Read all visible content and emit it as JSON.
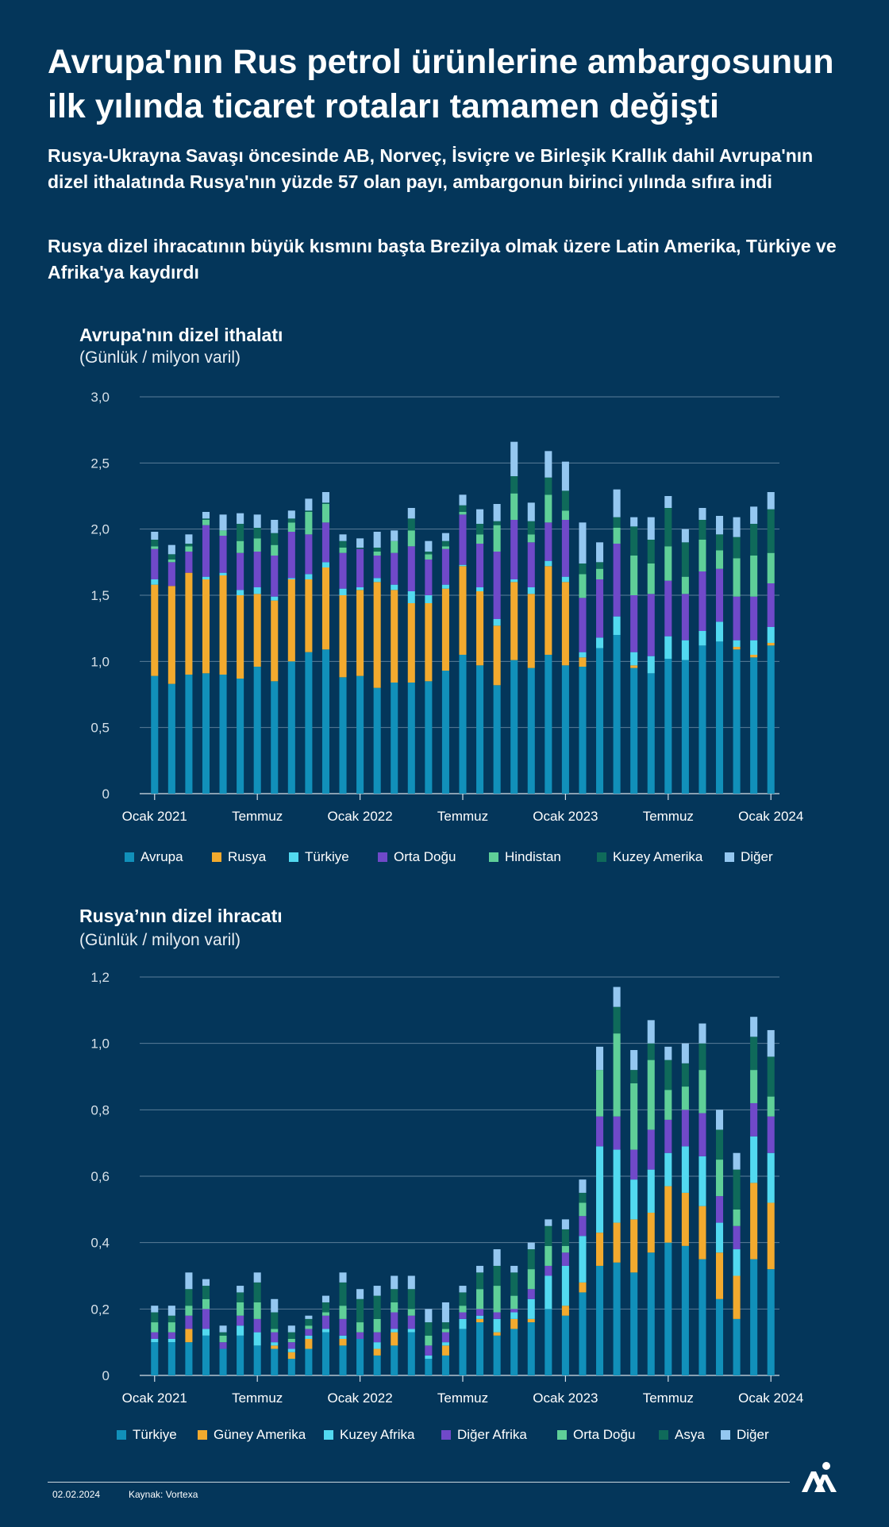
{
  "header": {
    "title": "Avrupa'nın Rus petrol ürünlerine ambargosunun ilk yılında ticaret rotaları tamamen değişti",
    "subtitle_1": "Rusya-Ukrayna Savaşı öncesinde AB, Norveç, İsviçre ve Birleşik Krallık dahil Avrupa'nın dizel ithalatında Rusya'nın yüzde 57 olan payı, ambargonun birinci yılında sıfıra indi",
    "subtitle_2": "Rusya dizel ihracatının büyük kısmını başta Brezilya olmak üzere Latin Amerika, Türkiye ve Afrika'ya kaydırdı"
  },
  "footer": {
    "date": "02.02.2024",
    "source": "Kaynak: Vortexa",
    "logo_text": "AA"
  },
  "colors": {
    "c1": "#1190ba",
    "c2": "#f2aa2e",
    "c3": "#52d9f0",
    "c4": "#7049c9",
    "c5": "#5fcf98",
    "c6": "#0f6a5a",
    "c7": "#94c7f0",
    "grid": "#5a7d99",
    "axis": "#d6e0e8"
  },
  "chart_data": [
    {
      "type": "bar",
      "stacked": true,
      "title": "Avrupa'nın dizel ithalatı",
      "unit": "(Günlük / milyon varil)",
      "ylim": [
        0,
        3
      ],
      "yticks": [
        "0",
        "0,5",
        "1,0",
        "1,5",
        "2,0",
        "2,5",
        "3,0"
      ],
      "xticks": [
        {
          "label": "Ocak 2021",
          "index": 0
        },
        {
          "label": "Temmuz",
          "index": 6
        },
        {
          "label": "Ocak 2022",
          "index": 12
        },
        {
          "label": "Temmuz",
          "index": 18
        },
        {
          "label": "Ocak 2023",
          "index": 24
        },
        {
          "label": "Temmuz",
          "index": 30
        },
        {
          "label": "Ocak 2024",
          "index": 36
        }
      ],
      "categories": [
        "2021-01",
        "2021-02",
        "2021-03",
        "2021-04",
        "2021-05",
        "2021-06",
        "2021-07",
        "2021-08",
        "2021-09",
        "2021-10",
        "2021-11",
        "2021-12",
        "2022-01",
        "2022-02",
        "2022-03",
        "2022-04",
        "2022-05",
        "2022-06",
        "2022-07",
        "2022-08",
        "2022-09",
        "2022-10",
        "2022-11",
        "2022-12",
        "2023-01",
        "2023-02",
        "2023-03",
        "2023-04",
        "2023-05",
        "2023-06",
        "2023-07",
        "2023-08",
        "2023-09",
        "2023-10",
        "2023-11",
        "2023-12",
        "2024-01"
      ],
      "series": [
        {
          "name": "Avrupa",
          "color": "#1190ba",
          "values": [
            0.89,
            0.83,
            0.9,
            0.91,
            0.9,
            0.87,
            0.96,
            0.85,
            1.0,
            1.07,
            1.09,
            0.88,
            0.89,
            0.8,
            0.84,
            0.84,
            0.85,
            0.93,
            1.05,
            0.97,
            0.82,
            1.01,
            0.95,
            1.05,
            0.97,
            0.96,
            1.1,
            1.2,
            0.95,
            0.91,
            1.02,
            1.01,
            1.12,
            1.15,
            1.09,
            1.03,
            1.12
          ]
        },
        {
          "name": "Rusya",
          "color": "#f2aa2e",
          "values": [
            0.69,
            0.74,
            0.77,
            0.71,
            0.75,
            0.63,
            0.55,
            0.61,
            0.62,
            0.55,
            0.62,
            0.62,
            0.65,
            0.8,
            0.7,
            0.6,
            0.59,
            0.62,
            0.67,
            0.56,
            0.45,
            0.59,
            0.56,
            0.67,
            0.63,
            0.07,
            0,
            0,
            0.02,
            0,
            0,
            0,
            0,
            0,
            0.02,
            0.02,
            0.02
          ]
        },
        {
          "name": "Türkiye",
          "color": "#52d9f0",
          "values": [
            0.04,
            0,
            0,
            0.02,
            0.02,
            0.04,
            0.05,
            0.03,
            0.01,
            0.04,
            0.04,
            0.05,
            0.02,
            0.03,
            0.04,
            0.09,
            0.06,
            0.03,
            0.01,
            0.03,
            0.05,
            0.02,
            0.05,
            0.04,
            0.04,
            0.04,
            0.08,
            0.14,
            0.1,
            0.13,
            0.17,
            0.15,
            0.11,
            0.15,
            0.05,
            0.11,
            0.12
          ]
        },
        {
          "name": "Orta Doğu",
          "color": "#7049c9",
          "values": [
            0.23,
            0.18,
            0.16,
            0.39,
            0.28,
            0.28,
            0.27,
            0.31,
            0.35,
            0.3,
            0.3,
            0.27,
            0.29,
            0.17,
            0.24,
            0.34,
            0.27,
            0.27,
            0.38,
            0.33,
            0.51,
            0.45,
            0.34,
            0.29,
            0.43,
            0.41,
            0.44,
            0.55,
            0.43,
            0.47,
            0.42,
            0.35,
            0.45,
            0.4,
            0.33,
            0.33,
            0.33
          ]
        },
        {
          "name": "Hindistan",
          "color": "#5fcf98",
          "values": [
            0.02,
            0.02,
            0.04,
            0.04,
            0.04,
            0.09,
            0.1,
            0.08,
            0.07,
            0.17,
            0.14,
            0.04,
            0,
            0.03,
            0.09,
            0.12,
            0.04,
            0.02,
            0.02,
            0.07,
            0.2,
            0.2,
            0.06,
            0.21,
            0.07,
            0.18,
            0.08,
            0.12,
            0.3,
            0.23,
            0.26,
            0.13,
            0.24,
            0.14,
            0.29,
            0.31,
            0.23
          ]
        },
        {
          "name": "Kuzey Amerika",
          "color": "#0f6a5a",
          "values": [
            0.05,
            0.04,
            0.02,
            0.01,
            0,
            0.13,
            0.08,
            0.09,
            0.03,
            0.01,
            0.01,
            0.05,
            0.01,
            0.03,
            0,
            0.09,
            0.02,
            0.04,
            0.05,
            0.08,
            0.03,
            0.13,
            0.1,
            0.13,
            0.15,
            0.08,
            0.05,
            0.08,
            0.22,
            0.18,
            0.29,
            0.26,
            0.15,
            0.12,
            0.16,
            0.24,
            0.33
          ]
        },
        {
          "name": "Diğer",
          "color": "#94c7f0",
          "values": [
            0.06,
            0.07,
            0.07,
            0.05,
            0.12,
            0.08,
            0.1,
            0.1,
            0.06,
            0.09,
            0.08,
            0.05,
            0.07,
            0.12,
            0.08,
            0.08,
            0.08,
            0.06,
            0.08,
            0.11,
            0.13,
            0.26,
            0.14,
            0.2,
            0.22,
            0.31,
            0.15,
            0.21,
            0.07,
            0.17,
            0.09,
            0.1,
            0.09,
            0.14,
            0.15,
            0.13,
            0.13
          ]
        }
      ],
      "legend": "bottom"
    },
    {
      "type": "bar",
      "stacked": true,
      "title": "Rusya’nın dizel ihracatı",
      "unit": "(Günlük / milyon varil)",
      "ylim": [
        0,
        1.2
      ],
      "yticks": [
        "0",
        "0,2",
        "0,4",
        "0,6",
        "0,8",
        "1,0",
        "1,2"
      ],
      "xticks": [
        {
          "label": "Ocak 2021",
          "index": 0
        },
        {
          "label": "Temmuz",
          "index": 6
        },
        {
          "label": "Ocak 2022",
          "index": 12
        },
        {
          "label": "Temmuz",
          "index": 18
        },
        {
          "label": "Ocak 2023",
          "index": 24
        },
        {
          "label": "Temmuz",
          "index": 30
        },
        {
          "label": "Ocak 2024",
          "index": 36
        }
      ],
      "categories": [
        "2021-01",
        "2021-02",
        "2021-03",
        "2021-04",
        "2021-05",
        "2021-06",
        "2021-07",
        "2021-08",
        "2021-09",
        "2021-10",
        "2021-11",
        "2021-12",
        "2022-01",
        "2022-02",
        "2022-03",
        "2022-04",
        "2022-05",
        "2022-06",
        "2022-07",
        "2022-08",
        "2022-09",
        "2022-10",
        "2022-11",
        "2022-12",
        "2023-01",
        "2023-02",
        "2023-03",
        "2023-04",
        "2023-05",
        "2023-06",
        "2023-07",
        "2023-08",
        "2023-09",
        "2023-10",
        "2023-11",
        "2023-12",
        "2024-01"
      ],
      "series": [
        {
          "name": "Türkiye",
          "color": "#1190ba",
          "values": [
            0.1,
            0.1,
            0.1,
            0.12,
            0.08,
            0.12,
            0.09,
            0.08,
            0.05,
            0.08,
            0.13,
            0.09,
            0.11,
            0.06,
            0.09,
            0.13,
            0.05,
            0.06,
            0.14,
            0.16,
            0.12,
            0.14,
            0.16,
            0.2,
            0.18,
            0.25,
            0.33,
            0.34,
            0.31,
            0.37,
            0.4,
            0.39,
            0.35,
            0.23,
            0.17,
            0.35,
            0.32
          ]
        },
        {
          "name": "Güney Amerika",
          "color": "#f2aa2e",
          "values": [
            0,
            0,
            0.04,
            0,
            0,
            0,
            0,
            0.01,
            0.02,
            0.03,
            0,
            0.02,
            0,
            0.02,
            0.04,
            0,
            0,
            0.03,
            0,
            0.01,
            0.01,
            0.03,
            0.01,
            0,
            0.03,
            0.03,
            0.1,
            0.12,
            0.16,
            0.12,
            0.17,
            0.16,
            0.16,
            0.14,
            0.13,
            0.23,
            0.2
          ]
        },
        {
          "name": "Kuzey Afrika",
          "color": "#52d9f0",
          "values": [
            0.01,
            0.01,
            0,
            0.02,
            0,
            0.03,
            0.04,
            0.01,
            0.01,
            0.01,
            0.01,
            0.01,
            0,
            0.02,
            0.01,
            0.01,
            0.01,
            0.01,
            0.03,
            0.01,
            0.04,
            0.02,
            0.06,
            0.1,
            0.12,
            0.14,
            0.26,
            0.22,
            0.12,
            0.13,
            0.1,
            0.14,
            0.15,
            0.09,
            0.08,
            0.14,
            0.15
          ]
        },
        {
          "name": "Diğer Afrika",
          "color": "#7049c9",
          "values": [
            0.02,
            0.02,
            0.04,
            0.06,
            0.02,
            0.03,
            0.04,
            0.03,
            0.02,
            0.02,
            0.04,
            0.05,
            0.02,
            0.03,
            0.05,
            0.04,
            0.03,
            0.03,
            0.02,
            0.02,
            0.02,
            0.01,
            0.03,
            0.03,
            0.04,
            0.06,
            0.09,
            0.1,
            0.09,
            0.12,
            0.1,
            0.11,
            0.13,
            0.08,
            0.07,
            0.1,
            0.11
          ]
        },
        {
          "name": "Orta Doğu",
          "color": "#5fcf98",
          "values": [
            0.03,
            0.03,
            0.03,
            0.03,
            0.02,
            0.04,
            0.05,
            0.01,
            0.01,
            0.01,
            0.01,
            0.04,
            0.03,
            0.04,
            0.03,
            0.02,
            0.03,
            0.01,
            0.02,
            0.06,
            0.08,
            0.04,
            0.06,
            0.06,
            0.02,
            0.04,
            0.14,
            0.25,
            0.2,
            0.21,
            0.09,
            0.07,
            0.13,
            0.11,
            0.05,
            0.1,
            0.06
          ]
        },
        {
          "name": "Asya",
          "color": "#0f6a5a",
          "values": [
            0.03,
            0.02,
            0.05,
            0.04,
            0.01,
            0.03,
            0.06,
            0.05,
            0.02,
            0.02,
            0.03,
            0.07,
            0.07,
            0.07,
            0.04,
            0.06,
            0.04,
            0.02,
            0.04,
            0.05,
            0.06,
            0.07,
            0.06,
            0.06,
            0.05,
            0.03,
            0.0,
            0.08,
            0.04,
            0.05,
            0.09,
            0.07,
            0.08,
            0.09,
            0.12,
            0.1,
            0.12
          ]
        },
        {
          "name": "Diğer",
          "color": "#94c7f0",
          "values": [
            0.02,
            0.03,
            0.05,
            0.02,
            0.02,
            0.02,
            0.03,
            0.04,
            0.02,
            0.01,
            0.02,
            0.03,
            0.03,
            0.03,
            0.04,
            0.04,
            0.04,
            0.06,
            0.02,
            0.02,
            0.05,
            0.02,
            0.02,
            0.02,
            0.03,
            0.04,
            0.07,
            0.06,
            0.06,
            0.07,
            0.04,
            0.06,
            0.06,
            0.06,
            0.05,
            0.06,
            0.08
          ]
        }
      ],
      "legend": "bottom"
    }
  ]
}
